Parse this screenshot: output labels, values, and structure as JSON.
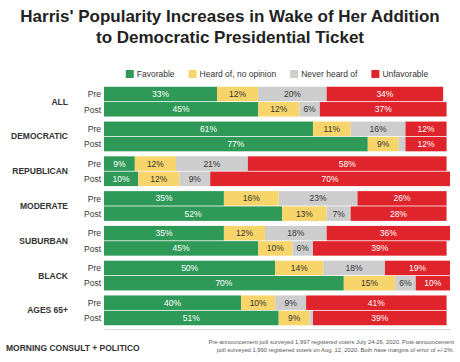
{
  "chart_data": {
    "type": "bar",
    "title": "Harris' Popularity Increases in Wake of Her Addition to Democratic Presidential Ticket",
    "orientation": "horizontal",
    "stacked": true,
    "data_labels": true,
    "tick_labels": "y",
    "legend": "top",
    "groups": [
      "ALL",
      "DEMOCRATIC",
      "REPUBLICAN",
      "MODERATE",
      "SUBURBAN",
      "BLACK",
      "AGES 65+"
    ],
    "categories": [
      "Pre",
      "Post",
      "Pre",
      "Post",
      "Pre",
      "Post",
      "Pre",
      "Post",
      "Pre",
      "Post",
      "Pre",
      "Post",
      "Pre",
      "Post"
    ],
    "xlim": [
      0,
      101
    ],
    "series": [
      {
        "name": "Favorable",
        "color": "#2f9a58",
        "values": [
          33,
          45,
          61,
          77,
          9,
          10,
          35,
          52,
          35,
          45,
          50,
          70,
          40,
          51
        ],
        "value_labels": [
          "33%",
          "45%",
          "61%",
          "77%",
          "9%",
          "10%",
          "35%",
          "52%",
          "35%",
          "45%",
          "50%",
          "70%",
          "40%",
          "51%"
        ]
      },
      {
        "name": "Heard of, no opinion",
        "color": "#f7d56b",
        "values": [
          12,
          12,
          11,
          9,
          12,
          12,
          16,
          13,
          12,
          10,
          14,
          15,
          10,
          9
        ],
        "value_labels": [
          "12%",
          "12%",
          "11%",
          "9%",
          "12%",
          "12%",
          "16%",
          "13%",
          "12%",
          "10%",
          "14%",
          "15%",
          "10%",
          "9%"
        ]
      },
      {
        "name": "Never heard of",
        "color": "#cdcdcd",
        "values": [
          20,
          6,
          16,
          2,
          21,
          9,
          23,
          7,
          18,
          6,
          18,
          6,
          9,
          1
        ],
        "value_labels": [
          "20%",
          "6%",
          "16%",
          null,
          "21%",
          "9%",
          "23%",
          "7%",
          "18%",
          "6%",
          "18%",
          "6%",
          "9%",
          null
        ]
      },
      {
        "name": "Unfavorable",
        "color": "#e0242b",
        "values": [
          34,
          37,
          12,
          12,
          58,
          70,
          26,
          28,
          36,
          39,
          19,
          10,
          41,
          39
        ],
        "value_labels": [
          "34%",
          "37%",
          "12%",
          "12%",
          "58%",
          "70%",
          "26%",
          "28%",
          "36%",
          "39%",
          "19%",
          "10%",
          "41%",
          "39%"
        ]
      }
    ],
    "source": "MORNING CONSULT + POLITICO",
    "note": [
      "Pre-announcement poll surveyed 1,997 registered voters July 24-26, 2020. Post-announcement",
      "poll surveyed 1,990 registered voters on Aug. 12, 2020. Both have margins of error of +/-2%."
    ]
  }
}
